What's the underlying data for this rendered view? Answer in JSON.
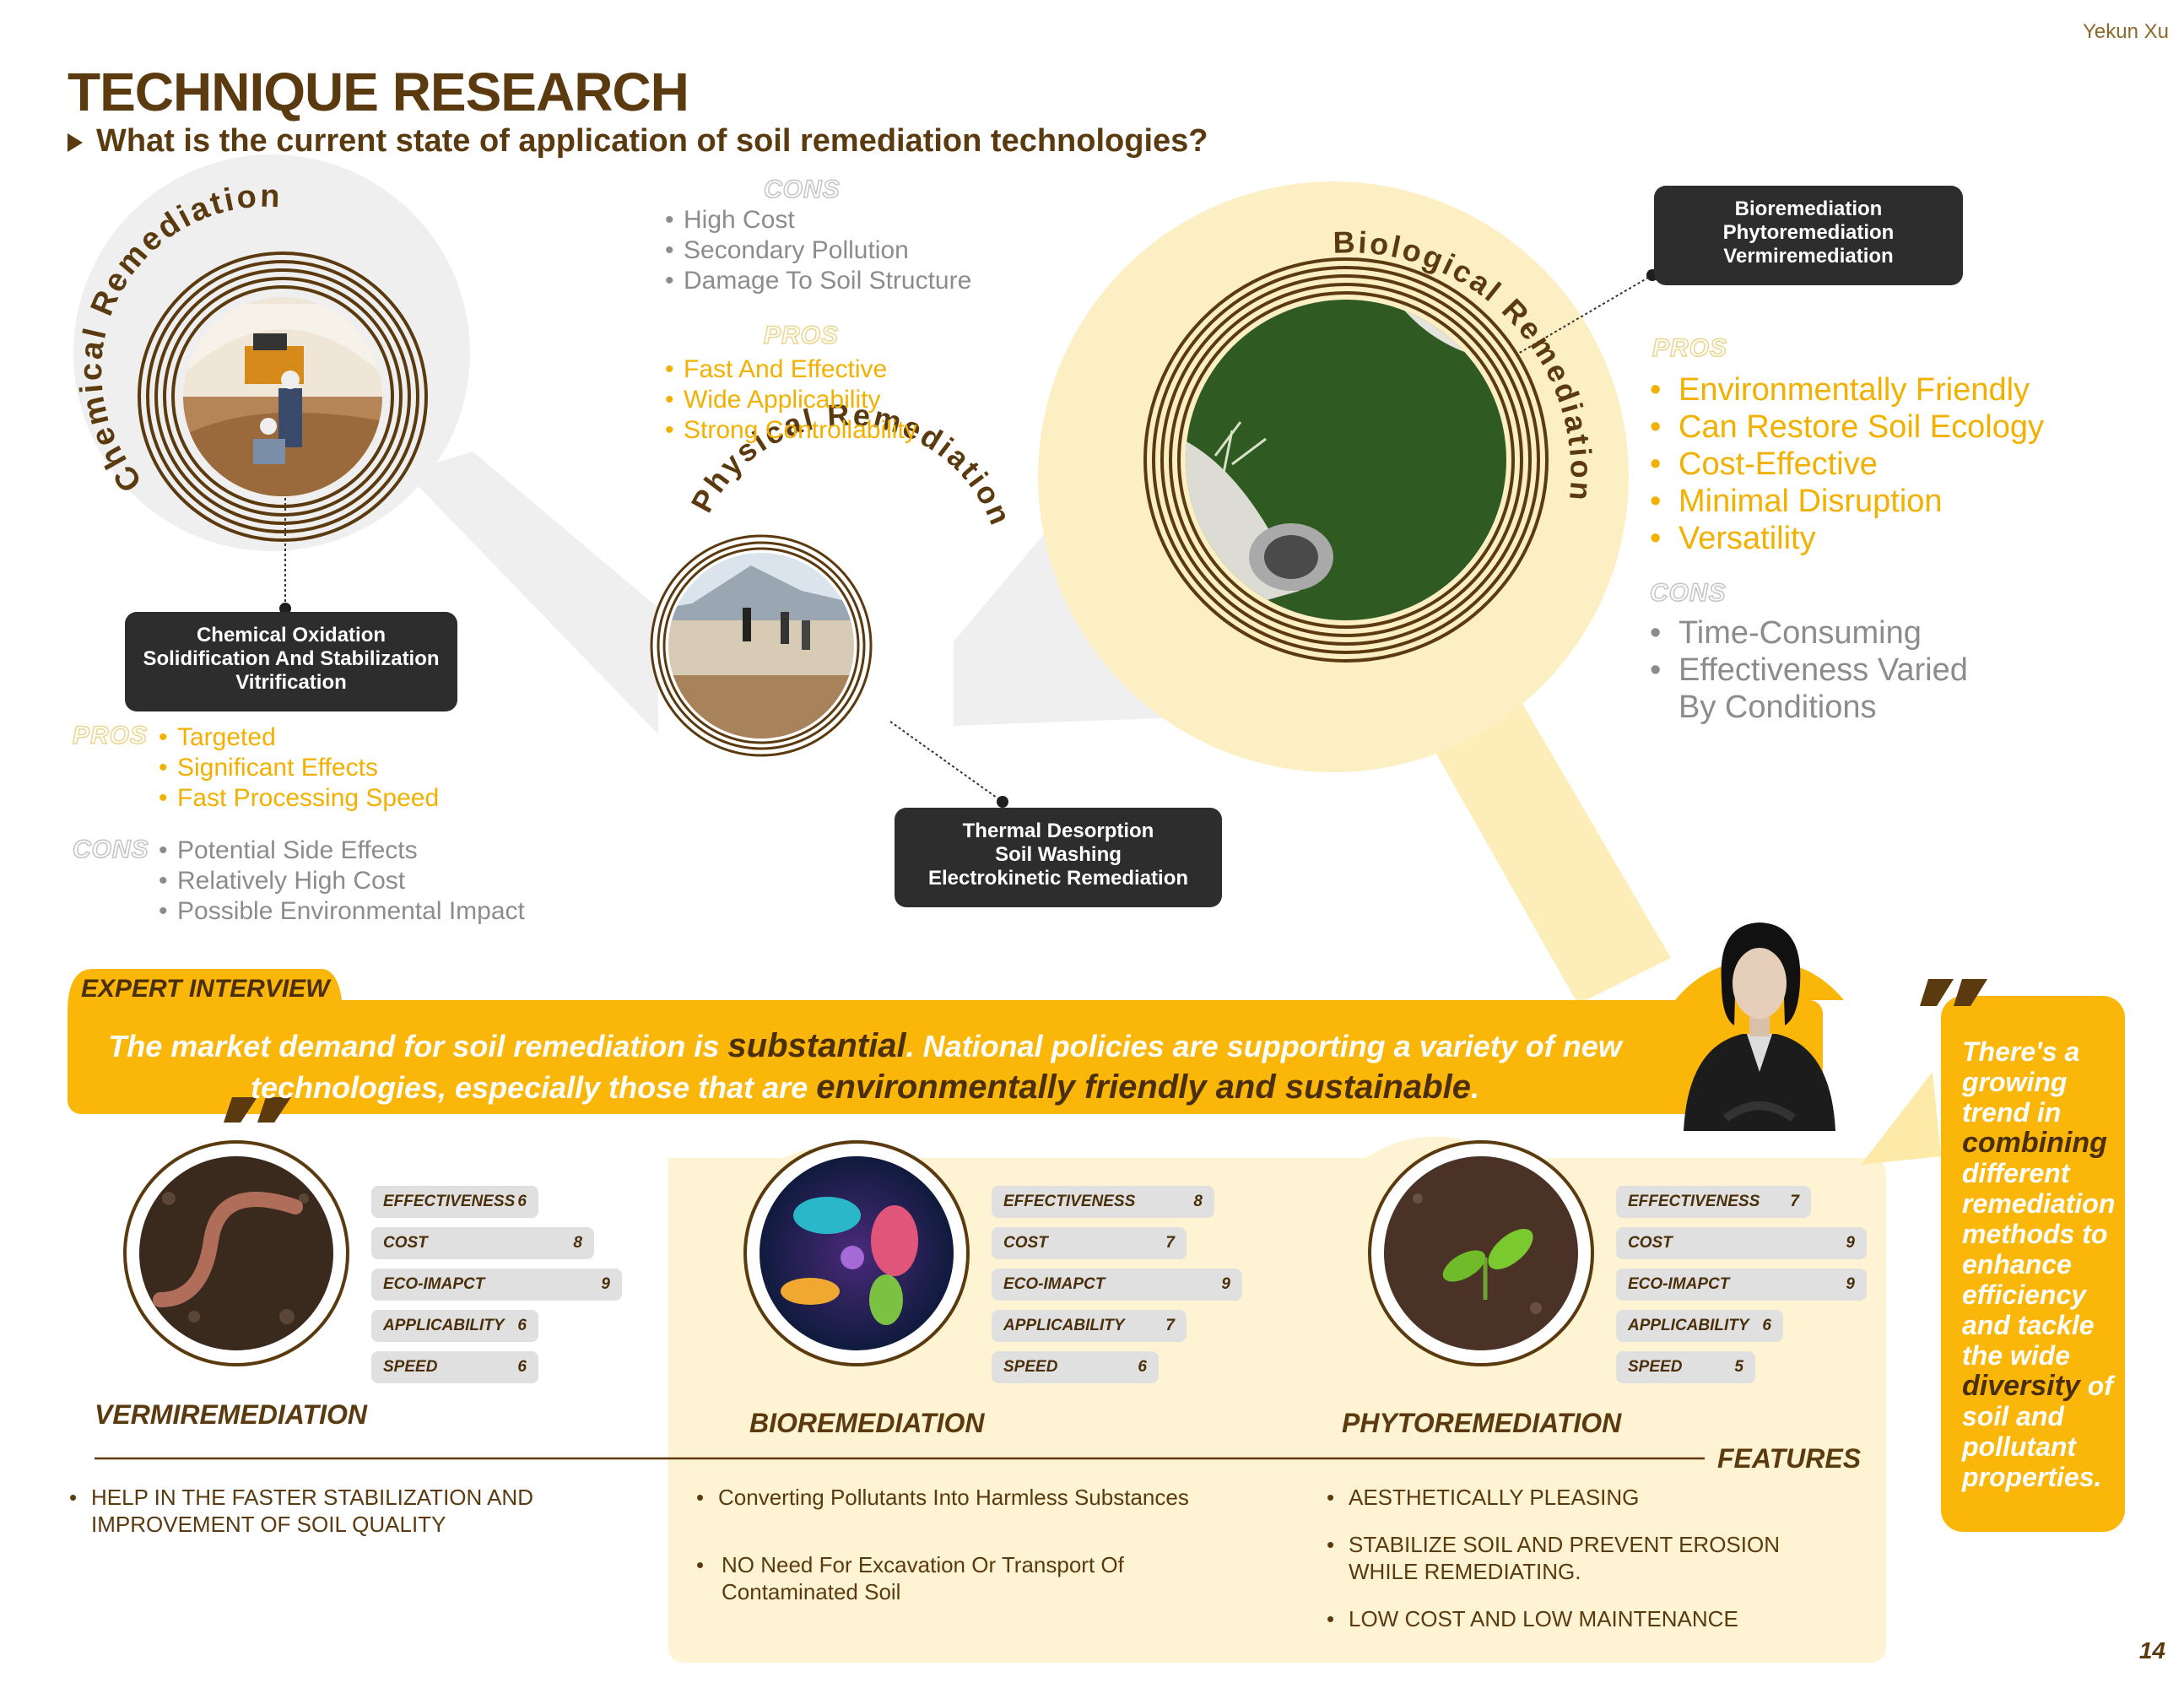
{
  "author": "Yekun Xu",
  "title": "TECHNIQUE RESEARCH",
  "subtitle": "What is the current state of application of soil remediation technologies?",
  "chemical": {
    "arc_label": "Chemical Remediation",
    "methods": [
      "Chemical Oxidation",
      "Solidification And Stabilization",
      "Vitrification"
    ],
    "pros_tag": "PROS",
    "pros": [
      "Targeted",
      "Significant Effects",
      "Fast Processing Speed"
    ],
    "cons_tag": "CONS",
    "cons": [
      "Potential Side Effects",
      "Relatively High Cost",
      "Possible Environmental Impact"
    ]
  },
  "physical": {
    "arc_label": "Physical Remediation",
    "methods": [
      "Thermal Desorption",
      "Soil Washing",
      "Electrokinetic Remediation"
    ],
    "cons_tag": "CONS",
    "cons": [
      "High Cost",
      "Secondary Pollution",
      "Damage To Soil Structure"
    ],
    "pros_tag": "PROS",
    "pros": [
      "Fast And Effective",
      "Wide Applicability",
      "Strong Controllability"
    ]
  },
  "biological": {
    "arc_label": "Biological Remediation",
    "methods": [
      "Bioremediation",
      "Phytoremediation",
      "Vermiremediation"
    ],
    "pros_tag": "PROS",
    "pros": [
      "Environmentally Friendly",
      "Can Restore Soil Ecology",
      "Cost-Effective",
      "Minimal Disruption",
      "Versatility"
    ],
    "cons_tag": "CONS",
    "cons": [
      "Time-Consuming",
      "Effectiveness Varied By Conditions"
    ]
  },
  "interview": {
    "label": "EXPERT INTERVIEW",
    "quote_p1": "The market demand for soil remediation is ",
    "quote_em1": "substantial",
    "quote_p2": ". National policies are supporting a variety of new",
    "quote_p3": "technologies, especially those that are ",
    "quote_em2": "environmentally friendly and sustainable",
    "quote_p4": "."
  },
  "side_quote": {
    "p1": "There's a growing trend in",
    "em1": "combining",
    "p2": "different remediation methods to enhance efficiency and tackle the wide",
    "em2": "diversity",
    "p3": "of soil and pollutant properties."
  },
  "methods_compare": [
    {
      "name": "VERMIREMEDIATION",
      "scores": [
        {
          "label": "EFFECTIVENESS",
          "value": 6
        },
        {
          "label": "COST",
          "value": 8
        },
        {
          "label": "ECO-IMAPCT",
          "value": 9
        },
        {
          "label": "APPLICABILITY",
          "value": 6
        },
        {
          "label": "SPEED",
          "value": 6
        }
      ],
      "features": [
        "HELP IN THE FASTER STABILIZATION AND IMPROVEMENT OF SOIL QUALITY"
      ]
    },
    {
      "name": "BIOREMEDIATION",
      "scores": [
        {
          "label": "EFFECTIVENESS",
          "value": 8
        },
        {
          "label": "COST",
          "value": 7
        },
        {
          "label": "ECO-IMAPCT",
          "value": 9
        },
        {
          "label": "APPLICABILITY",
          "value": 7
        },
        {
          "label": "SPEED",
          "value": 6
        }
      ],
      "features": [
        "Converting Pollutants Into Harmless Substances",
        "NO Need For Excavation Or Transport Of Contaminated Soil"
      ]
    },
    {
      "name": "PHYTOREMEDIATION",
      "scores": [
        {
          "label": "EFFECTIVENESS",
          "value": 7
        },
        {
          "label": "COST",
          "value": 9
        },
        {
          "label": "ECO-IMAPCT",
          "value": 9
        },
        {
          "label": "APPLICABILITY",
          "value": 6
        },
        {
          "label": "SPEED",
          "value": 5
        }
      ],
      "features": [
        "AESTHETICALLY PLEASING",
        "STABILIZE SOIL AND PREVENT EROSION WHILE REMEDIATING.",
        "LOW COST AND LOW MAINTENANCE"
      ]
    }
  ],
  "features_label": "FEATURES",
  "page_number": "14",
  "colors": {
    "brown": "#5a3a0e",
    "yellow": "#fbb60a",
    "light_yellow": "#fef3d2",
    "gray_text": "#8c8c8c"
  }
}
